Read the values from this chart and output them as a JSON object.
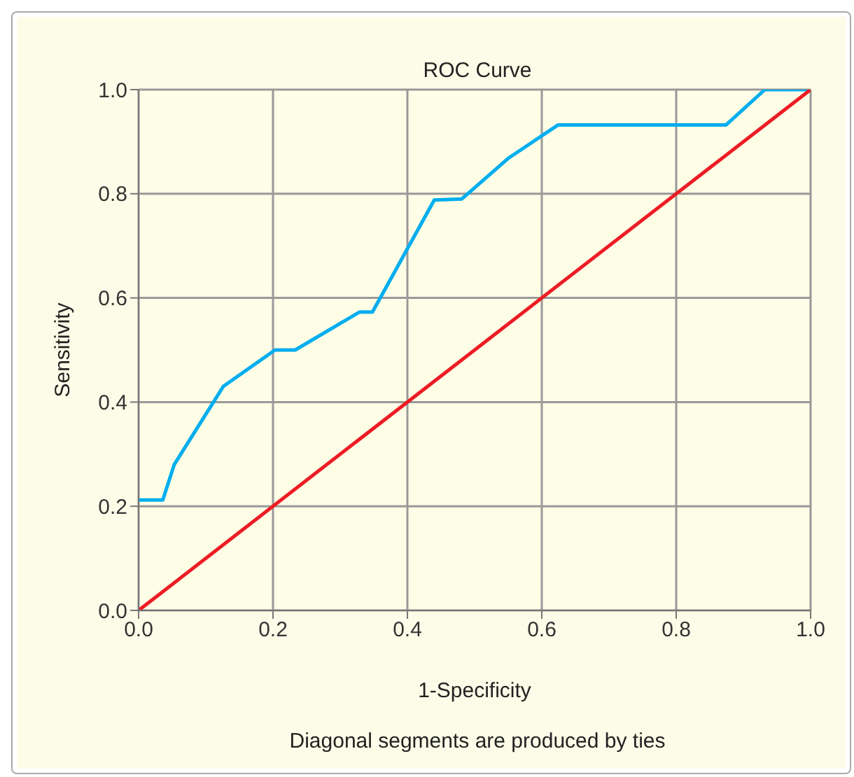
{
  "chart_data": {
    "type": "line",
    "title": "ROC Curve",
    "xlabel": "1-Specificity",
    "ylabel": "Sensitivity",
    "annotations": [
      "Diagonal segments are produced by ties"
    ],
    "series": [
      {
        "color": "#00aeef",
        "x": [
          0,
          0.036,
          0.053,
          0.126,
          0.203,
          0.233,
          0.329,
          0.348,
          0.44,
          0.481,
          0.551,
          0.624,
          0.874,
          0.932,
          1.0
        ],
        "values": [
          0.212,
          0.212,
          0.28,
          0.43,
          0.5,
          0.5,
          0.573,
          0.573,
          0.788,
          0.79,
          0.869,
          0.932,
          0.932,
          1.0,
          1.0
        ]
      },
      {
        "color": "#ed1c24",
        "x": [
          0,
          1
        ],
        "values": [
          0,
          1
        ]
      }
    ],
    "xlim": [
      0,
      1
    ],
    "ylim": [
      0,
      1
    ],
    "xticks": [
      {
        "value": 0,
        "label": "0.0"
      },
      0.2,
      0.4,
      0.6,
      0.8,
      {
        "value": 1,
        "label": "1.0"
      }
    ],
    "yticks": [
      {
        "value": 0,
        "label": "0.0"
      },
      0.2,
      0.4,
      0.6,
      0.8,
      {
        "value": 1,
        "label": "1.0"
      }
    ],
    "grid": true,
    "marker": "none",
    "line_style": "solid"
  }
}
